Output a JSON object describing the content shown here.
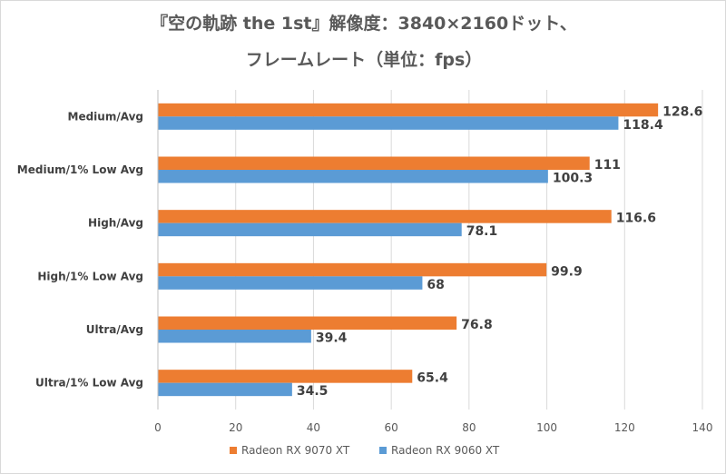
{
  "chart_data": {
    "type": "bar",
    "orientation": "horizontal",
    "title": [
      "『空の軌跡 the 1st』解像度：3840×2160ドット、",
      "フレームレート（単位：fps）"
    ],
    "categories": [
      "Medium/Avg",
      "Medium/1% Low Avg",
      "High/Avg",
      "High/1% Low Avg",
      "Ultra/Avg",
      "Ultra/1% Low Avg"
    ],
    "series": [
      {
        "name": "Radeon RX 9070 XT",
        "color": "#ed7d31",
        "values": [
          128.6,
          111,
          116.6,
          99.9,
          76.8,
          65.4
        ]
      },
      {
        "name": "Radeon RX 9060 XT",
        "color": "#5b9bd5",
        "values": [
          118.4,
          100.3,
          78.1,
          68,
          39.4,
          34.5
        ]
      }
    ],
    "xlim": [
      0,
      140
    ],
    "xticks": [
      0,
      20,
      40,
      60,
      80,
      100,
      120,
      140
    ],
    "grid": true,
    "legend": "bottom"
  }
}
